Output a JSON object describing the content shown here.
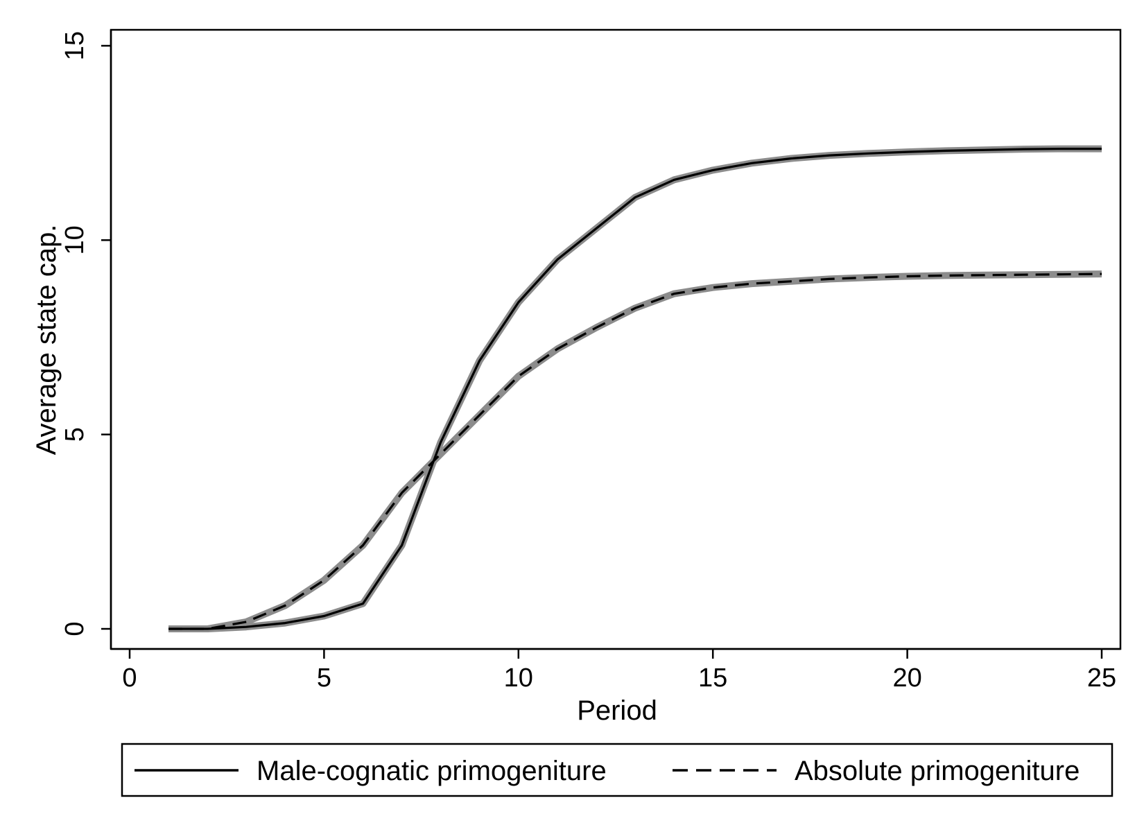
{
  "chart_data": {
    "type": "line",
    "title": "",
    "xlabel": "Period",
    "ylabel": "Average state cap.",
    "xlim": [
      0,
      25
    ],
    "ylim": [
      0,
      15
    ],
    "x_ticks": [
      "0",
      "5",
      "10",
      "15",
      "20",
      "25"
    ],
    "y_ticks": [
      "0",
      "5",
      "10",
      "15"
    ],
    "grid": false,
    "legend_position": "bottom",
    "x": [
      1,
      2,
      3,
      4,
      5,
      6,
      7,
      8,
      9,
      10,
      11,
      12,
      13,
      14,
      15,
      16,
      17,
      18,
      19,
      20,
      21,
      22,
      23,
      24,
      25
    ],
    "series": [
      {
        "name": "Male-cognatic primogeniture",
        "style": "solid",
        "color": "#000000",
        "band_color": "#8c8c8c",
        "values": [
          0,
          0,
          0.05,
          0.15,
          0.33,
          0.65,
          2.15,
          4.8,
          6.9,
          8.4,
          9.5,
          10.3,
          11.1,
          11.55,
          11.8,
          11.98,
          12.1,
          12.18,
          12.23,
          12.27,
          12.3,
          12.32,
          12.34,
          12.35,
          12.35
        ]
      },
      {
        "name": "Absolute primogeniture",
        "style": "dashed",
        "color": "#000000",
        "band_color": "#8c8c8c",
        "values": [
          0,
          0,
          0.18,
          0.6,
          1.25,
          2.15,
          3.5,
          4.5,
          5.5,
          6.5,
          7.2,
          7.75,
          8.25,
          8.62,
          8.78,
          8.88,
          8.94,
          9.0,
          9.04,
          9.07,
          9.09,
          9.1,
          9.11,
          9.12,
          9.13
        ]
      }
    ]
  }
}
